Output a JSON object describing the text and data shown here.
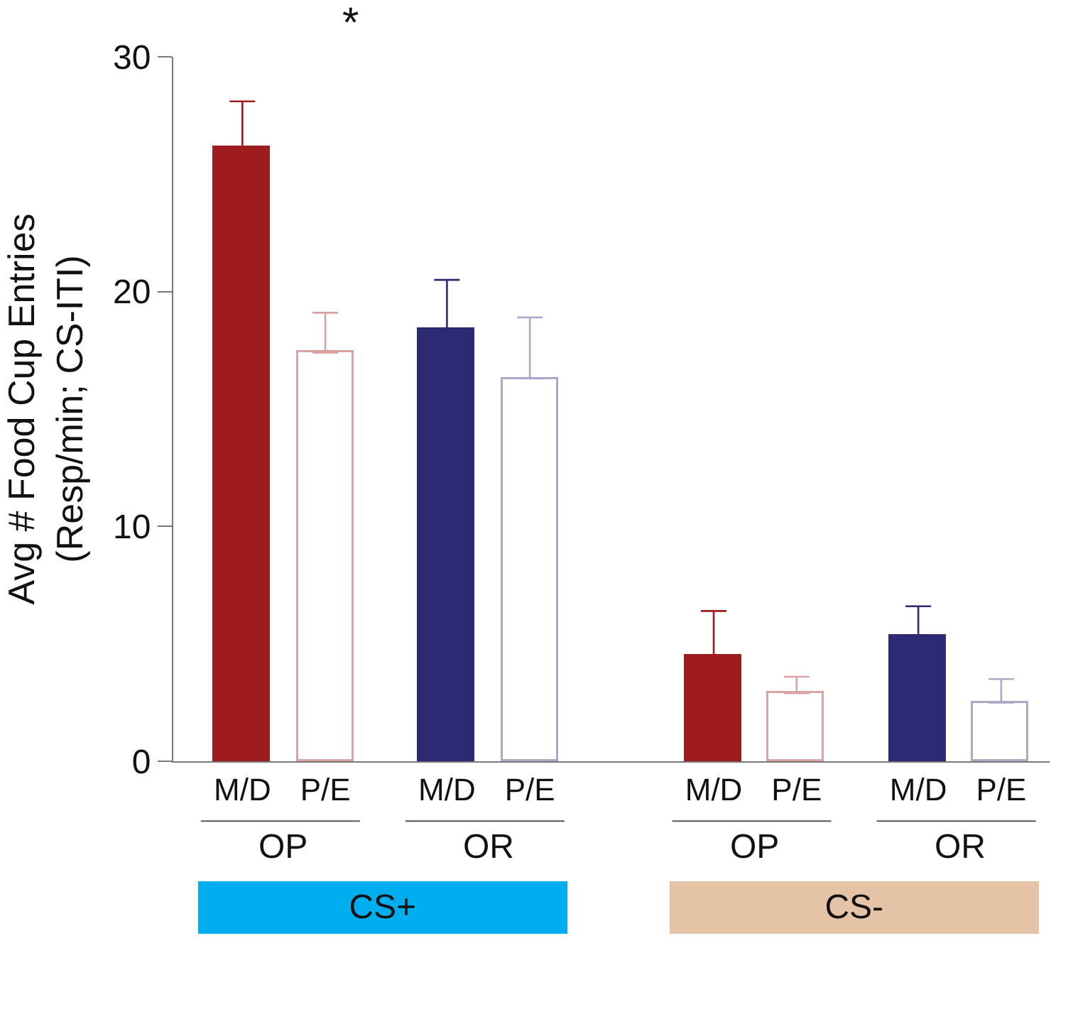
{
  "chart_data": {
    "type": "bar",
    "ylabel": "Avg # Food Cup Entries\n(Resp/min; CS-ITI)",
    "categories": [
      "M/D",
      "P/E",
      "M/D",
      "P/E",
      "M/D",
      "P/E",
      "M/D",
      "P/E"
    ],
    "values": [
      26.1,
      17.4,
      18.4,
      16.3,
      4.5,
      2.9,
      5.3,
      2.5
    ],
    "colors": [
      "#9e1b1e",
      "#d9a3a3",
      "#2b2a72",
      "#a9a8c9",
      "#9e1b1e",
      "#d9a3a3",
      "#2b2a72",
      "#a9a8c9"
    ],
    "errors": [
      [
        26.1,
        28.1
      ],
      [
        17.4,
        19.1
      ],
      [
        18.4,
        20.5
      ],
      [
        16.3,
        18.9
      ],
      [
        4.5,
        6.4
      ],
      [
        2.9,
        3.6
      ],
      [
        5.3,
        6.6
      ],
      [
        2.5,
        3.5
      ]
    ],
    "ylim": [
      0,
      30
    ],
    "yticks": [
      0,
      10,
      20,
      30
    ],
    "annotations": [
      "OP",
      "OR",
      "OP",
      "OR",
      "CS+",
      "CS-",
      "*"
    ]
  }
}
